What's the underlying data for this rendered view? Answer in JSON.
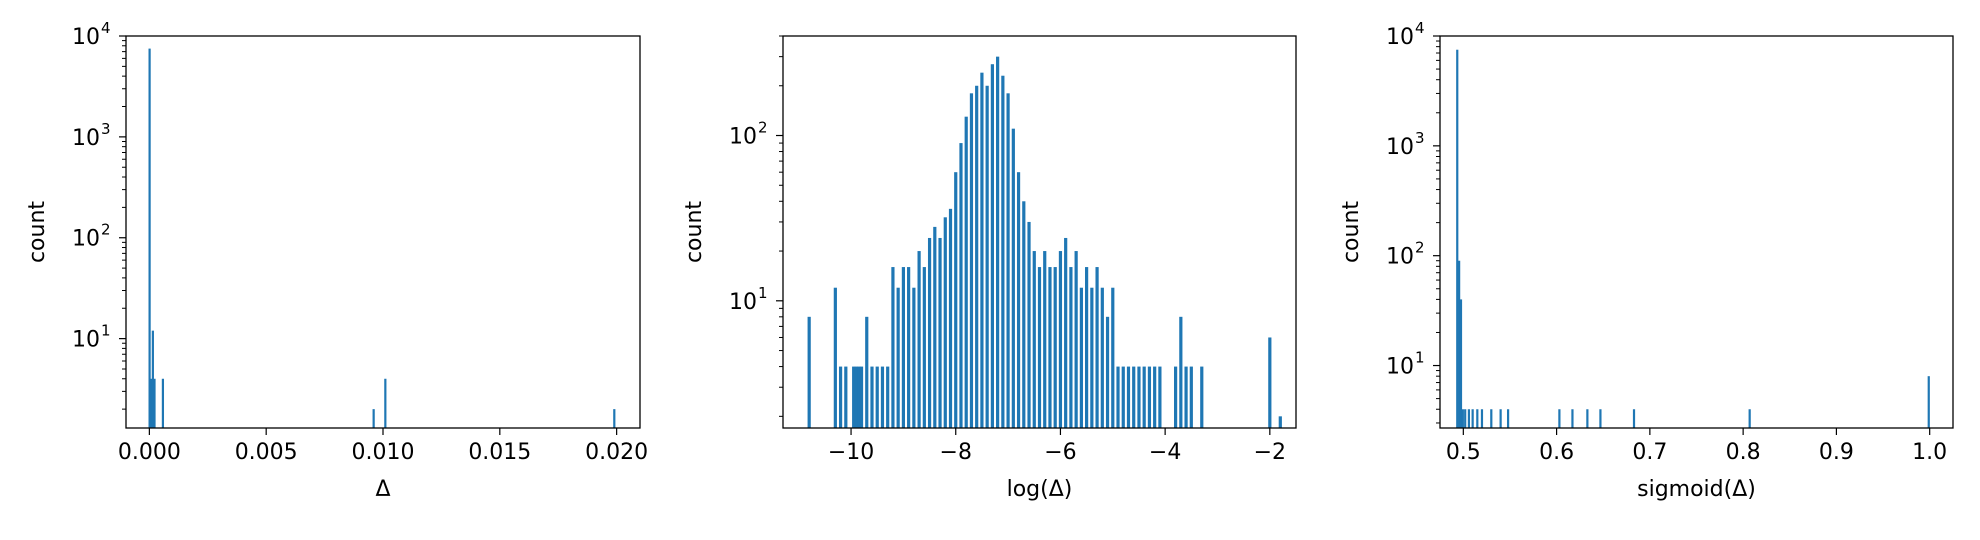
{
  "chart_data": [
    {
      "type": "bar",
      "xlabel": "Δ",
      "ylabel": "count",
      "yscale": "log",
      "xlim": [
        -0.001,
        0.021
      ],
      "ylim": [
        1.3,
        10000
      ],
      "xticks": [
        {
          "v": 0.0,
          "label": "0.000"
        },
        {
          "v": 0.005,
          "label": "0.005"
        },
        {
          "v": 0.01,
          "label": "0.010"
        },
        {
          "v": 0.015,
          "label": "0.015"
        },
        {
          "v": 0.02,
          "label": "0.020"
        }
      ],
      "yticks": [
        {
          "v": 10,
          "exp": "1"
        },
        {
          "v": 100,
          "exp": "2"
        },
        {
          "v": 1000,
          "exp": "3"
        },
        {
          "v": 10000,
          "exp": "4"
        }
      ],
      "bars": [
        {
          "x": 1e-05,
          "count": 7500
        },
        {
          "x": 8e-05,
          "count": 4
        },
        {
          "x": 0.00015,
          "count": 12
        },
        {
          "x": 0.00022,
          "count": 4
        },
        {
          "x": 0.00058,
          "count": 4
        },
        {
          "x": 0.0096,
          "count": 2
        },
        {
          "x": 0.0101,
          "count": 4
        },
        {
          "x": 0.0199,
          "count": 2
        }
      ]
    },
    {
      "type": "bar",
      "xlabel": "log(Δ)",
      "ylabel": "count",
      "yscale": "log",
      "xlim": [
        -11.3,
        -1.5
      ],
      "ylim": [
        1.7,
        400
      ],
      "xticks": [
        {
          "v": -10,
          "label": "−10"
        },
        {
          "v": -8,
          "label": "−8"
        },
        {
          "v": -6,
          "label": "−6"
        },
        {
          "v": -4,
          "label": "−4"
        },
        {
          "v": -2,
          "label": "−2"
        }
      ],
      "yticks": [
        {
          "v": 10,
          "exp": "1"
        },
        {
          "v": 100,
          "exp": "2"
        }
      ],
      "bars": [
        {
          "x": -10.8,
          "count": 8
        },
        {
          "x": -10.3,
          "count": 12
        },
        {
          "x": -10.2,
          "count": 4
        },
        {
          "x": -10.1,
          "count": 4
        },
        {
          "x": -9.95,
          "count": 4
        },
        {
          "x": -9.9,
          "count": 4
        },
        {
          "x": -9.85,
          "count": 4
        },
        {
          "x": -9.8,
          "count": 4
        },
        {
          "x": -9.7,
          "count": 8
        },
        {
          "x": -9.6,
          "count": 4
        },
        {
          "x": -9.5,
          "count": 4
        },
        {
          "x": -9.4,
          "count": 4
        },
        {
          "x": -9.3,
          "count": 4
        },
        {
          "x": -9.2,
          "count": 16
        },
        {
          "x": -9.1,
          "count": 12
        },
        {
          "x": -9.0,
          "count": 16
        },
        {
          "x": -8.9,
          "count": 16
        },
        {
          "x": -8.8,
          "count": 12
        },
        {
          "x": -8.7,
          "count": 20
        },
        {
          "x": -8.6,
          "count": 16
        },
        {
          "x": -8.5,
          "count": 24
        },
        {
          "x": -8.4,
          "count": 28
        },
        {
          "x": -8.3,
          "count": 24
        },
        {
          "x": -8.2,
          "count": 32
        },
        {
          "x": -8.1,
          "count": 36
        },
        {
          "x": -8.0,
          "count": 60
        },
        {
          "x": -7.9,
          "count": 90
        },
        {
          "x": -7.8,
          "count": 130
        },
        {
          "x": -7.7,
          "count": 180
        },
        {
          "x": -7.6,
          "count": 200
        },
        {
          "x": -7.5,
          "count": 240
        },
        {
          "x": -7.4,
          "count": 200
        },
        {
          "x": -7.3,
          "count": 270
        },
        {
          "x": -7.2,
          "count": 300
        },
        {
          "x": -7.1,
          "count": 230
        },
        {
          "x": -7.0,
          "count": 180
        },
        {
          "x": -6.9,
          "count": 110
        },
        {
          "x": -6.8,
          "count": 60
        },
        {
          "x": -6.7,
          "count": 40
        },
        {
          "x": -6.6,
          "count": 30
        },
        {
          "x": -6.5,
          "count": 20
        },
        {
          "x": -6.4,
          "count": 16
        },
        {
          "x": -6.3,
          "count": 20
        },
        {
          "x": -6.2,
          "count": 16
        },
        {
          "x": -6.1,
          "count": 16
        },
        {
          "x": -6.0,
          "count": 20
        },
        {
          "x": -5.9,
          "count": 24
        },
        {
          "x": -5.8,
          "count": 16
        },
        {
          "x": -5.7,
          "count": 20
        },
        {
          "x": -5.6,
          "count": 12
        },
        {
          "x": -5.5,
          "count": 16
        },
        {
          "x": -5.4,
          "count": 12
        },
        {
          "x": -5.3,
          "count": 16
        },
        {
          "x": -5.2,
          "count": 12
        },
        {
          "x": -5.1,
          "count": 8
        },
        {
          "x": -5.0,
          "count": 12
        },
        {
          "x": -4.9,
          "count": 4
        },
        {
          "x": -4.8,
          "count": 4
        },
        {
          "x": -4.7,
          "count": 4
        },
        {
          "x": -4.6,
          "count": 4
        },
        {
          "x": -4.5,
          "count": 4
        },
        {
          "x": -4.4,
          "count": 4
        },
        {
          "x": -4.3,
          "count": 4
        },
        {
          "x": -4.2,
          "count": 4
        },
        {
          "x": -4.1,
          "count": 4
        },
        {
          "x": -3.8,
          "count": 4
        },
        {
          "x": -3.7,
          "count": 8
        },
        {
          "x": -3.6,
          "count": 4
        },
        {
          "x": -3.5,
          "count": 4
        },
        {
          "x": -3.3,
          "count": 4
        },
        {
          "x": -2.0,
          "count": 6
        },
        {
          "x": -1.8,
          "count": 2
        }
      ]
    },
    {
      "type": "bar",
      "xlabel": "sigmoid(Δ)",
      "ylabel": "count",
      "yscale": "log",
      "xlim": [
        0.475,
        1.025
      ],
      "ylim": [
        2.7,
        10000
      ],
      "xticks": [
        {
          "v": 0.5,
          "label": "0.5"
        },
        {
          "v": 0.6,
          "label": "0.6"
        },
        {
          "v": 0.7,
          "label": "0.7"
        },
        {
          "v": 0.8,
          "label": "0.8"
        },
        {
          "v": 0.9,
          "label": "0.9"
        },
        {
          "v": 1.0,
          "label": "1.0"
        }
      ],
      "yticks": [
        {
          "v": 10,
          "exp": "1"
        },
        {
          "v": 100,
          "exp": "2"
        },
        {
          "v": 1000,
          "exp": "3"
        },
        {
          "v": 10000,
          "exp": "4"
        }
      ],
      "bars": [
        {
          "x": 0.4935,
          "count": 7500
        },
        {
          "x": 0.4955,
          "count": 90
        },
        {
          "x": 0.4975,
          "count": 40
        },
        {
          "x": 0.4995,
          "count": 4
        },
        {
          "x": 0.502,
          "count": 4
        },
        {
          "x": 0.506,
          "count": 4
        },
        {
          "x": 0.51,
          "count": 4
        },
        {
          "x": 0.515,
          "count": 4
        },
        {
          "x": 0.52,
          "count": 4
        },
        {
          "x": 0.53,
          "count": 4
        },
        {
          "x": 0.54,
          "count": 4
        },
        {
          "x": 0.548,
          "count": 4
        },
        {
          "x": 0.603,
          "count": 4
        },
        {
          "x": 0.617,
          "count": 4
        },
        {
          "x": 0.633,
          "count": 4
        },
        {
          "x": 0.647,
          "count": 4
        },
        {
          "x": 0.683,
          "count": 4
        },
        {
          "x": 0.807,
          "count": 4
        },
        {
          "x": 0.999,
          "count": 8
        }
      ]
    }
  ]
}
